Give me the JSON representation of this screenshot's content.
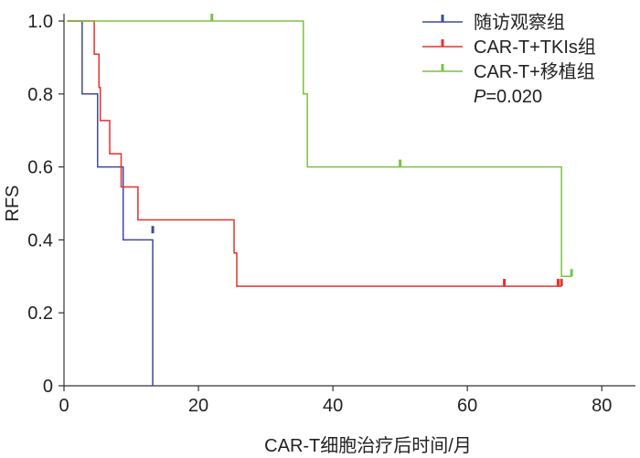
{
  "chart_data": {
    "type": "line",
    "subtype": "kaplan-meier-step",
    "xlabel": "CAR-T细胞治疗后时间/月",
    "ylabel": "RFS",
    "xlim": [
      0,
      85
    ],
    "ylim": [
      0,
      1.0
    ],
    "x_ticks": [
      {
        "value": 0,
        "label": "0"
      },
      {
        "value": 20,
        "label": "20"
      },
      {
        "value": 40,
        "label": "40"
      },
      {
        "value": 60,
        "label": "60"
      },
      {
        "value": 80,
        "label": "80"
      }
    ],
    "y_ticks": [
      {
        "value": 0,
        "label": "0"
      },
      {
        "value": 0.2,
        "label": "0.2"
      },
      {
        "value": 0.4,
        "label": "0.4"
      },
      {
        "value": 0.6,
        "label": "0.6"
      },
      {
        "value": 0.8,
        "label": "0.8"
      },
      {
        "value": 1.0,
        "label": "1.0"
      }
    ],
    "grid": false,
    "legend_position": "top-right",
    "p_value": {
      "prefix": "P",
      "suffix": "=0.020"
    },
    "series": [
      {
        "name": "随访观察组",
        "color": "#3b4aa0",
        "steps": [
          [
            0.5,
            1.0
          ],
          [
            2.7,
            0.8
          ],
          [
            5.0,
            0.6
          ],
          [
            8.8,
            0.4
          ],
          [
            13.2,
            0.0
          ]
        ],
        "censored": [
          [
            13.2,
            0.418
          ]
        ]
      },
      {
        "name": "CAR-T+TKIs组",
        "color": "#e8302b",
        "steps": [
          [
            0.5,
            1.0
          ],
          [
            4.5,
            0.909
          ],
          [
            5.2,
            0.818
          ],
          [
            5.4,
            0.727
          ],
          [
            6.8,
            0.636
          ],
          [
            8.5,
            0.545
          ],
          [
            11.0,
            0.455
          ],
          [
            25.3,
            0.364
          ],
          [
            25.7,
            0.273
          ],
          [
            74.0,
            0.273
          ]
        ],
        "censored": [
          [
            65.5,
            0.273
          ],
          [
            73.5,
            0.273
          ],
          [
            74.0,
            0.273
          ]
        ]
      },
      {
        "name": "CAR-T+移植组",
        "color": "#7cc142",
        "steps": [
          [
            0.5,
            1.0
          ],
          [
            35.6,
            0.8
          ],
          [
            36.2,
            0.6
          ],
          [
            74.0,
            0.3
          ],
          [
            75.5,
            0.3
          ]
        ],
        "censored": [
          [
            22.0,
            1.0
          ],
          [
            50.0,
            0.6
          ],
          [
            75.5,
            0.3
          ]
        ]
      }
    ]
  }
}
